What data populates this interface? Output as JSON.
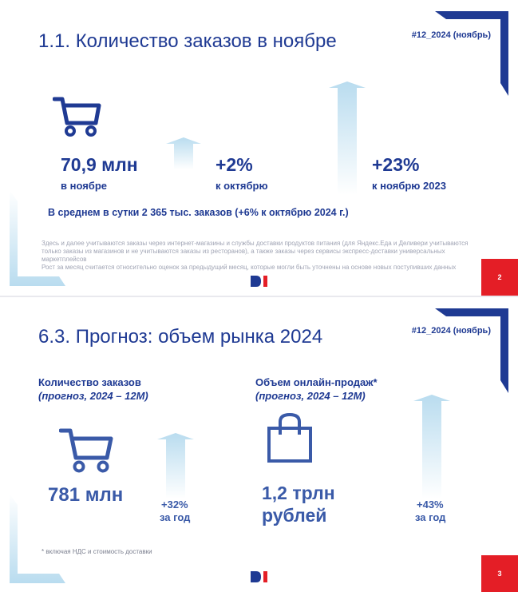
{
  "slides": [
    {
      "title": "1.1. Количество заказов в ноябре",
      "tag": "#12_2024 (ноябрь)",
      "main_value": "70,9 млн",
      "main_label": "в ноябре",
      "mom_value": "+2%",
      "mom_label": "к октябрю",
      "yoy_value": "+23%",
      "yoy_label": "к ноябрю 2023",
      "daily": "В среднем в сутки 2 365 тыс. заказов (+6% к октябрю 2024 г.)",
      "note_1": "Здесь и далее учитываются заказы через интернет-магазины и службы доставки продуктов питания (для Яндекс.Еда и Деливери учитываются только заказы из магазинов и не учитываются заказы из ресторанов), а также заказы через сервисы экспресс-доставки универсальных маркетплейсов",
      "note_2": "Рост за месяц считается относительно оценок за предыдущий месяц, которые могли быть уточнены на основе новых поступивших данных",
      "page": "2"
    },
    {
      "title": "6.3. Прогноз: объем рынка 2024",
      "tag": "#12_2024 (ноябрь)",
      "left_heading": "Количество заказов",
      "left_subheading": "(прогноз, 2024 – 12М)",
      "left_value": "781 млн",
      "left_growth_value": "+32%",
      "left_growth_label": "за год",
      "right_heading": "Объем онлайн-продаж*",
      "right_subheading": "(прогноз, 2024 – 12М)",
      "right_value_line1": "1,2 трлн",
      "right_value_line2": "рублей",
      "right_growth_value": "+43%",
      "right_growth_label": "за год",
      "footnote": "* включая НДС и стоимость доставки",
      "page": "3"
    }
  ],
  "colors": {
    "primary": "#1f3a93",
    "accent": "#e41e26",
    "arrow": "#b9dcef",
    "muted": "#a0a4b4"
  },
  "icons": [
    "shopping-cart-icon",
    "shopping-bag-icon",
    "up-arrow-icon",
    "brand-logo"
  ]
}
